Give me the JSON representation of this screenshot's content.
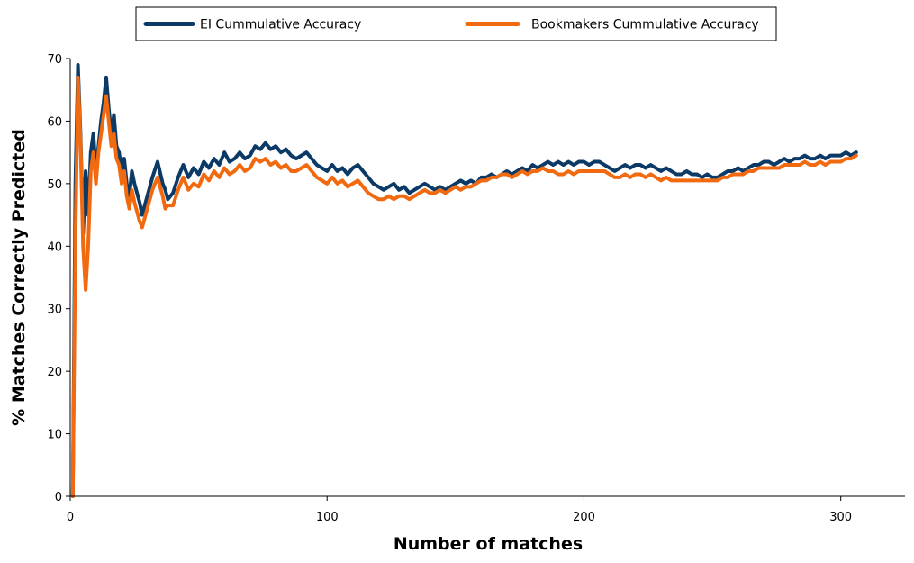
{
  "chart_data": {
    "type": "line",
    "xlabel": "Number of matches",
    "ylabel": "% Matches Correctly Predicted",
    "xlim": [
      0,
      325
    ],
    "ylim": [
      0,
      70
    ],
    "x_ticks": [
      "0",
      "100",
      "200",
      "300"
    ],
    "y_ticks": [
      "0",
      "10",
      "20",
      "30",
      "40",
      "50",
      "60",
      "70"
    ],
    "grid": false,
    "legend_position": "top",
    "series": [
      {
        "name": "EI Cummulative Accuracy",
        "color": "#0b3a66",
        "points": [
          [
            1,
            0
          ],
          [
            2,
            50
          ],
          [
            3,
            69
          ],
          [
            4,
            58
          ],
          [
            5,
            42
          ],
          [
            6,
            52
          ],
          [
            7,
            45
          ],
          [
            8,
            55
          ],
          [
            9,
            58
          ],
          [
            10,
            52
          ],
          [
            11,
            56
          ],
          [
            12,
            60
          ],
          [
            13,
            63
          ],
          [
            14,
            67
          ],
          [
            15,
            62
          ],
          [
            16,
            58
          ],
          [
            17,
            61
          ],
          [
            18,
            56
          ],
          [
            19,
            55
          ],
          [
            20,
            52
          ],
          [
            21,
            54
          ],
          [
            22,
            50
          ],
          [
            23,
            48
          ],
          [
            24,
            52
          ],
          [
            25,
            50
          ],
          [
            27,
            47
          ],
          [
            28,
            45
          ],
          [
            30,
            48
          ],
          [
            32,
            51
          ],
          [
            34,
            53.5
          ],
          [
            36,
            50
          ],
          [
            37,
            49
          ],
          [
            38,
            47.5
          ],
          [
            40,
            48.5
          ],
          [
            42,
            51
          ],
          [
            44,
            53
          ],
          [
            46,
            51
          ],
          [
            48,
            52.5
          ],
          [
            50,
            51.5
          ],
          [
            52,
            53.5
          ],
          [
            54,
            52.5
          ],
          [
            56,
            54
          ],
          [
            58,
            53
          ],
          [
            60,
            55
          ],
          [
            62,
            53.5
          ],
          [
            64,
            54
          ],
          [
            66,
            55
          ],
          [
            68,
            54
          ],
          [
            70,
            54.5
          ],
          [
            72,
            56
          ],
          [
            74,
            55.5
          ],
          [
            76,
            56.5
          ],
          [
            78,
            55.5
          ],
          [
            80,
            56
          ],
          [
            82,
            55
          ],
          [
            84,
            55.5
          ],
          [
            86,
            54.5
          ],
          [
            88,
            54
          ],
          [
            90,
            54.5
          ],
          [
            92,
            55
          ],
          [
            94,
            54
          ],
          [
            96,
            53
          ],
          [
            98,
            52.5
          ],
          [
            100,
            52
          ],
          [
            102,
            53
          ],
          [
            104,
            52
          ],
          [
            106,
            52.5
          ],
          [
            108,
            51.5
          ],
          [
            110,
            52.5
          ],
          [
            112,
            53
          ],
          [
            114,
            52
          ],
          [
            116,
            51
          ],
          [
            118,
            50
          ],
          [
            120,
            49.5
          ],
          [
            122,
            49
          ],
          [
            124,
            49.5
          ],
          [
            126,
            50
          ],
          [
            128,
            49
          ],
          [
            130,
            49.5
          ],
          [
            132,
            48.5
          ],
          [
            134,
            49
          ],
          [
            136,
            49.5
          ],
          [
            138,
            50
          ],
          [
            140,
            49.5
          ],
          [
            142,
            49
          ],
          [
            144,
            49.5
          ],
          [
            146,
            49
          ],
          [
            148,
            49.5
          ],
          [
            150,
            50
          ],
          [
            152,
            50.5
          ],
          [
            154,
            50
          ],
          [
            156,
            50.5
          ],
          [
            158,
            50
          ],
          [
            160,
            51
          ],
          [
            162,
            51
          ],
          [
            164,
            51.5
          ],
          [
            166,
            51
          ],
          [
            168,
            51.5
          ],
          [
            170,
            52
          ],
          [
            172,
            51.5
          ],
          [
            174,
            52
          ],
          [
            176,
            52.5
          ],
          [
            178,
            52
          ],
          [
            180,
            53
          ],
          [
            182,
            52.5
          ],
          [
            184,
            53
          ],
          [
            186,
            53.5
          ],
          [
            188,
            53
          ],
          [
            190,
            53.5
          ],
          [
            192,
            53
          ],
          [
            194,
            53.5
          ],
          [
            196,
            53
          ],
          [
            198,
            53.5
          ],
          [
            200,
            53.5
          ],
          [
            202,
            53
          ],
          [
            204,
            53.5
          ],
          [
            206,
            53.5
          ],
          [
            208,
            53
          ],
          [
            210,
            52.5
          ],
          [
            212,
            52
          ],
          [
            214,
            52.5
          ],
          [
            216,
            53
          ],
          [
            218,
            52.5
          ],
          [
            220,
            53
          ],
          [
            222,
            53
          ],
          [
            224,
            52.5
          ],
          [
            226,
            53
          ],
          [
            228,
            52.5
          ],
          [
            230,
            52
          ],
          [
            232,
            52.5
          ],
          [
            234,
            52
          ],
          [
            236,
            51.5
          ],
          [
            238,
            51.5
          ],
          [
            240,
            52
          ],
          [
            242,
            51.5
          ],
          [
            244,
            51.5
          ],
          [
            246,
            51
          ],
          [
            248,
            51.5
          ],
          [
            250,
            51
          ],
          [
            252,
            51
          ],
          [
            254,
            51.5
          ],
          [
            256,
            52
          ],
          [
            258,
            52
          ],
          [
            260,
            52.5
          ],
          [
            262,
            52
          ],
          [
            264,
            52.5
          ],
          [
            266,
            53
          ],
          [
            268,
            53
          ],
          [
            270,
            53.5
          ],
          [
            272,
            53.5
          ],
          [
            274,
            53
          ],
          [
            276,
            53.5
          ],
          [
            278,
            54
          ],
          [
            280,
            53.5
          ],
          [
            282,
            54
          ],
          [
            284,
            54
          ],
          [
            286,
            54.5
          ],
          [
            288,
            54
          ],
          [
            290,
            54
          ],
          [
            292,
            54.5
          ],
          [
            294,
            54
          ],
          [
            296,
            54.5
          ],
          [
            298,
            54.5
          ],
          [
            300,
            54.5
          ],
          [
            302,
            55
          ],
          [
            304,
            54.5
          ],
          [
            306,
            55
          ]
        ]
      },
      {
        "name": "Bookmakers Cummulative Accuracy",
        "color": "#f26a10",
        "points": [
          [
            1,
            0
          ],
          [
            2,
            40
          ],
          [
            3,
            67
          ],
          [
            4,
            57
          ],
          [
            5,
            40
          ],
          [
            6,
            33
          ],
          [
            7,
            40
          ],
          [
            8,
            52
          ],
          [
            9,
            55
          ],
          [
            10,
            50
          ],
          [
            11,
            55
          ],
          [
            12,
            58
          ],
          [
            13,
            61
          ],
          [
            14,
            64
          ],
          [
            15,
            60
          ],
          [
            16,
            56
          ],
          [
            17,
            58
          ],
          [
            18,
            54
          ],
          [
            19,
            53
          ],
          [
            20,
            50
          ],
          [
            21,
            52
          ],
          [
            22,
            48
          ],
          [
            23,
            46
          ],
          [
            24,
            49
          ],
          [
            25,
            47
          ],
          [
            27,
            44
          ],
          [
            28,
            43
          ],
          [
            30,
            46
          ],
          [
            32,
            49
          ],
          [
            34,
            51
          ],
          [
            36,
            48
          ],
          [
            37,
            46
          ],
          [
            38,
            46.5
          ],
          [
            40,
            46.5
          ],
          [
            42,
            49
          ],
          [
            44,
            51
          ],
          [
            46,
            49
          ],
          [
            48,
            50
          ],
          [
            50,
            49.5
          ],
          [
            52,
            51.5
          ],
          [
            54,
            50.5
          ],
          [
            56,
            52
          ],
          [
            58,
            51
          ],
          [
            60,
            52.5
          ],
          [
            62,
            51.5
          ],
          [
            64,
            52
          ],
          [
            66,
            53
          ],
          [
            68,
            52
          ],
          [
            70,
            52.5
          ],
          [
            72,
            54
          ],
          [
            74,
            53.5
          ],
          [
            76,
            54
          ],
          [
            78,
            53
          ],
          [
            80,
            53.5
          ],
          [
            82,
            52.5
          ],
          [
            84,
            53
          ],
          [
            86,
            52
          ],
          [
            88,
            52
          ],
          [
            90,
            52.5
          ],
          [
            92,
            53
          ],
          [
            94,
            52
          ],
          [
            96,
            51
          ],
          [
            98,
            50.5
          ],
          [
            100,
            50
          ],
          [
            102,
            51
          ],
          [
            104,
            50
          ],
          [
            106,
            50.5
          ],
          [
            108,
            49.5
          ],
          [
            110,
            50
          ],
          [
            112,
            50.5
          ],
          [
            114,
            49.5
          ],
          [
            116,
            48.5
          ],
          [
            118,
            48
          ],
          [
            120,
            47.5
          ],
          [
            122,
            47.5
          ],
          [
            124,
            48
          ],
          [
            126,
            47.5
          ],
          [
            128,
            48
          ],
          [
            130,
            48
          ],
          [
            132,
            47.5
          ],
          [
            134,
            48
          ],
          [
            136,
            48.5
          ],
          [
            138,
            49
          ],
          [
            140,
            48.5
          ],
          [
            142,
            48.5
          ],
          [
            144,
            49
          ],
          [
            146,
            48.5
          ],
          [
            148,
            49
          ],
          [
            150,
            49.5
          ],
          [
            152,
            49
          ],
          [
            154,
            49.5
          ],
          [
            156,
            49.5
          ],
          [
            158,
            50
          ],
          [
            160,
            50.5
          ],
          [
            162,
            50.5
          ],
          [
            164,
            51
          ],
          [
            166,
            51
          ],
          [
            168,
            51.5
          ],
          [
            170,
            51.5
          ],
          [
            172,
            51
          ],
          [
            174,
            51.5
          ],
          [
            176,
            52
          ],
          [
            178,
            51.5
          ],
          [
            180,
            52
          ],
          [
            182,
            52
          ],
          [
            184,
            52.5
          ],
          [
            186,
            52
          ],
          [
            188,
            52
          ],
          [
            190,
            51.5
          ],
          [
            192,
            51.5
          ],
          [
            194,
            52
          ],
          [
            196,
            51.5
          ],
          [
            198,
            52
          ],
          [
            200,
            52
          ],
          [
            202,
            52
          ],
          [
            204,
            52
          ],
          [
            206,
            52
          ],
          [
            208,
            52
          ],
          [
            210,
            51.5
          ],
          [
            212,
            51
          ],
          [
            214,
            51
          ],
          [
            216,
            51.5
          ],
          [
            218,
            51
          ],
          [
            220,
            51.5
          ],
          [
            222,
            51.5
          ],
          [
            224,
            51
          ],
          [
            226,
            51.5
          ],
          [
            228,
            51
          ],
          [
            230,
            50.5
          ],
          [
            232,
            51
          ],
          [
            234,
            50.5
          ],
          [
            236,
            50.5
          ],
          [
            238,
            50.5
          ],
          [
            240,
            50.5
          ],
          [
            242,
            50.5
          ],
          [
            244,
            50.5
          ],
          [
            246,
            50.5
          ],
          [
            248,
            50.5
          ],
          [
            250,
            50.5
          ],
          [
            252,
            50.5
          ],
          [
            254,
            51
          ],
          [
            256,
            51
          ],
          [
            258,
            51.5
          ],
          [
            260,
            51.5
          ],
          [
            262,
            51.5
          ],
          [
            264,
            52
          ],
          [
            266,
            52
          ],
          [
            268,
            52.5
          ],
          [
            270,
            52.5
          ],
          [
            272,
            52.5
          ],
          [
            274,
            52.5
          ],
          [
            276,
            52.5
          ],
          [
            278,
            53
          ],
          [
            280,
            53
          ],
          [
            282,
            53
          ],
          [
            284,
            53
          ],
          [
            286,
            53.5
          ],
          [
            288,
            53
          ],
          [
            290,
            53
          ],
          [
            292,
            53.5
          ],
          [
            294,
            53
          ],
          [
            296,
            53.5
          ],
          [
            298,
            53.5
          ],
          [
            300,
            53.5
          ],
          [
            302,
            54
          ],
          [
            304,
            54
          ],
          [
            306,
            54.5
          ]
        ]
      }
    ]
  }
}
